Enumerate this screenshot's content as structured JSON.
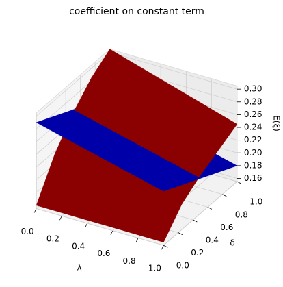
{
  "chart_data": {
    "type": "surface3d",
    "title": "coefficient on constant term",
    "xlabel": "λ",
    "ylabel": "δ",
    "zlabel": "E(ξ)",
    "x": [
      0,
      0.25,
      0.5,
      0.75,
      1
    ],
    "y": [
      0,
      0.25,
      0.5,
      0.75,
      1
    ],
    "xlim": [
      0,
      1
    ],
    "ylim": [
      0,
      1
    ],
    "zlim": [
      0.155,
      0.305
    ],
    "xticks": [
      {
        "value": 0,
        "label": "0.0"
      },
      {
        "value": 0.2,
        "label": "0.2"
      },
      {
        "value": 0.4,
        "label": "0.4"
      },
      {
        "value": 0.6,
        "label": "0.6"
      },
      {
        "value": 0.8,
        "label": "0.8"
      },
      {
        "value": 1,
        "label": "1.0"
      }
    ],
    "yticks": [
      {
        "value": 0,
        "label": "0.0"
      },
      {
        "value": 0.2,
        "label": "0.2"
      },
      {
        "value": 0.4,
        "label": "0.4"
      },
      {
        "value": 0.6,
        "label": "0.6"
      },
      {
        "value": 0.8,
        "label": "0.8"
      },
      {
        "value": 1,
        "label": "1.0"
      }
    ],
    "zticks": [
      {
        "value": 0.16,
        "label": "0.16"
      },
      {
        "value": 0.18,
        "label": "0.18"
      },
      {
        "value": 0.2,
        "label": "0.20"
      },
      {
        "value": 0.22,
        "label": "0.22"
      },
      {
        "value": 0.24,
        "label": "0.24"
      },
      {
        "value": 0.26,
        "label": "0.26"
      },
      {
        "value": 0.28,
        "label": "0.28"
      },
      {
        "value": 0.3,
        "label": "0.30"
      }
    ],
    "series": [
      {
        "color": "#0000a8",
        "z": [
          [
            0.29,
            0.2775,
            0.265,
            0.2525,
            0.24
          ],
          [
            0.275,
            0.2625,
            0.25,
            0.2375,
            0.225
          ],
          [
            0.26,
            0.2475,
            0.235,
            0.2225,
            0.21
          ],
          [
            0.245,
            0.2325,
            0.22,
            0.2075,
            0.195
          ],
          [
            0.23,
            0.2175,
            0.205,
            0.1925,
            0.18
          ]
        ]
      },
      {
        "color": "#8b0000",
        "z": [
          [
            0.16,
            0.16,
            0.16,
            0.16,
            0.16
          ],
          [
            0.215,
            0.21,
            0.205,
            0.2,
            0.195
          ],
          [
            0.255,
            0.245,
            0.235,
            0.225,
            0.215
          ],
          [
            0.285,
            0.27,
            0.255,
            0.24,
            0.23
          ],
          [
            0.305,
            0.29,
            0.275,
            0.26,
            0.245
          ]
        ]
      }
    ]
  }
}
